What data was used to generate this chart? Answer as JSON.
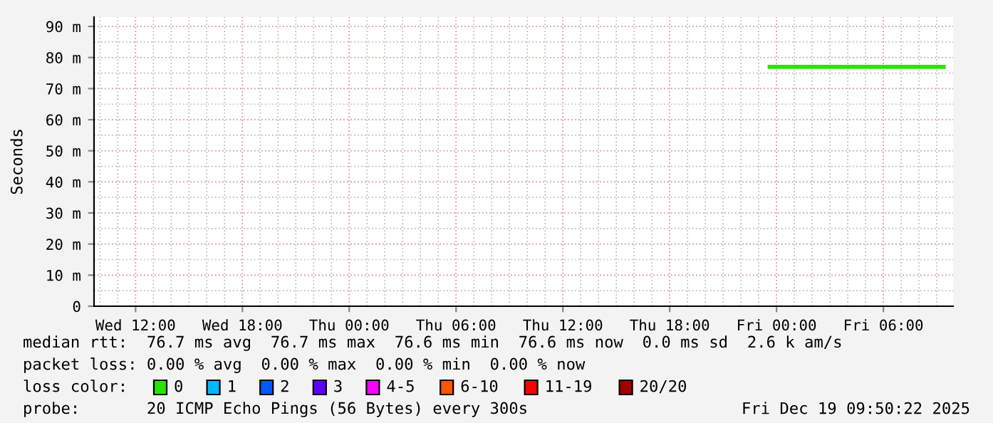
{
  "chart_data": {
    "type": "line",
    "ylabel": "Seconds",
    "x": [
      "2025-12-18T23:30",
      "2025-12-19T00:30",
      "2025-12-19T01:30",
      "2025-12-19T02:30",
      "2025-12-19T03:30",
      "2025-12-19T04:30",
      "2025-12-19T05:30",
      "2025-12-19T06:30",
      "2025-12-19T07:30",
      "2025-12-19T08:30",
      "2025-12-19T09:30"
    ],
    "series": [
      {
        "name": "0",
        "color": "#26e600",
        "values": [
          77,
          77,
          77,
          77,
          77,
          77,
          77,
          77,
          77,
          77,
          77
        ]
      },
      {
        "name": "1",
        "color": "#00b8ff",
        "values": [
          null,
          null,
          null,
          null,
          null,
          null,
          null,
          null,
          null,
          null,
          null
        ]
      },
      {
        "name": "2",
        "color": "#0059ff",
        "values": [
          null,
          null,
          null,
          null,
          null,
          null,
          null,
          null,
          null,
          null,
          null
        ]
      },
      {
        "name": "3",
        "color": "#5e00ff",
        "values": [
          null,
          null,
          null,
          null,
          null,
          null,
          null,
          null,
          null,
          null,
          null
        ]
      },
      {
        "name": "4-5",
        "color": "#ff00ff",
        "values": [
          null,
          null,
          null,
          null,
          null,
          null,
          null,
          null,
          null,
          null,
          null
        ]
      },
      {
        "name": "6-10",
        "color": "#ff5500",
        "values": [
          null,
          null,
          null,
          null,
          null,
          null,
          null,
          null,
          null,
          null,
          null
        ]
      },
      {
        "name": "11-19",
        "color": "#ff0000",
        "values": [
          null,
          null,
          null,
          null,
          null,
          null,
          null,
          null,
          null,
          null,
          null
        ]
      },
      {
        "name": "20/20",
        "color": "#a10000",
        "values": [
          null,
          null,
          null,
          null,
          null,
          null,
          null,
          null,
          null,
          null,
          null
        ]
      }
    ],
    "legend_title": "loss color:",
    "legend": "bottom",
    "grid": true,
    "xlim": [
      "2025-12-17T09:40",
      "2025-12-19T09:55"
    ],
    "xticks": [
      {
        "value": "2025-12-17T12:00",
        "label": "Wed 12:00"
      },
      {
        "value": "2025-12-17T18:00",
        "label": "Wed 18:00"
      },
      {
        "value": "2025-12-18T00:00",
        "label": "Thu 00:00"
      },
      {
        "value": "2025-12-18T06:00",
        "label": "Thu 06:00"
      },
      {
        "value": "2025-12-18T12:00",
        "label": "Thu 12:00"
      },
      {
        "value": "2025-12-18T18:00",
        "label": "Thu 18:00"
      },
      {
        "value": "2025-12-19T00:00",
        "label": "Fri 00:00"
      },
      {
        "value": "2025-12-19T06:00",
        "label": "Fri 06:00"
      }
    ],
    "ylim": [
      0,
      93
    ],
    "yticks": [
      0,
      {
        "value": 10,
        "label": "10 m"
      },
      {
        "value": 20,
        "label": "20 m"
      },
      {
        "value": 30,
        "label": "30 m"
      },
      {
        "value": 40,
        "label": "40 m"
      },
      {
        "value": 50,
        "label": "50 m"
      },
      {
        "value": 60,
        "label": "60 m"
      },
      {
        "value": 70,
        "label": "70 m"
      },
      {
        "value": 80,
        "label": "80 m"
      },
      {
        "value": 90,
        "label": "90 m"
      }
    ],
    "annotations": [
      "median rtt:  76.7 ms avg  76.7 ms max  76.6 ms min  76.6 ms now  0.0 ms sd  2.6 k am/s",
      "packet loss: 0.00 % avg  0.00 % max  0.00 % min  0.00 % now",
      "probe:       20 ICMP Echo Pings (56 Bytes) every 300s",
      "Fri Dec 19 09:50:22 2025"
    ]
  }
}
